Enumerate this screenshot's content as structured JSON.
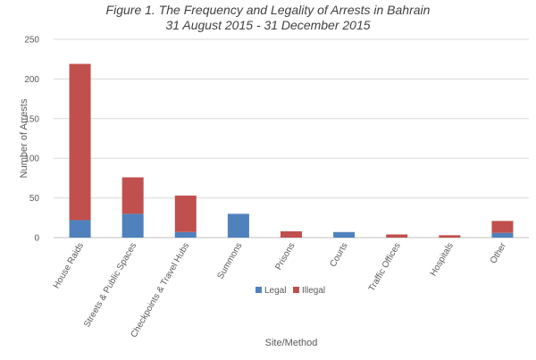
{
  "chart_data": {
    "type": "bar",
    "stacked": true,
    "title": "Figure 1. The Frequency and Legality of Arrests in Bahrain",
    "subtitle": "31 August 2015 - 31 December 2015",
    "xlabel": "Site/Method",
    "ylabel": "Number of Arrests",
    "ylim": [
      0,
      250
    ],
    "yticks": [
      0,
      50,
      100,
      150,
      200,
      250
    ],
    "grid": true,
    "legend": "bottom",
    "categories": [
      "House Raids",
      "Streets & Public Spaces",
      "Checkpoints & Travel Hubs",
      "Summons",
      "Prisons",
      "Courts",
      "Traffic Offices",
      "Hospitals",
      "Other"
    ],
    "series": [
      {
        "name": "Legal",
        "color": "#4F81BD",
        "values": [
          22,
          30,
          7,
          30,
          0,
          7,
          0,
          0,
          6
        ]
      },
      {
        "name": "Illegal",
        "color": "#C0504D",
        "values": [
          197,
          46,
          46,
          0,
          8,
          0,
          4,
          3,
          15
        ]
      }
    ]
  }
}
